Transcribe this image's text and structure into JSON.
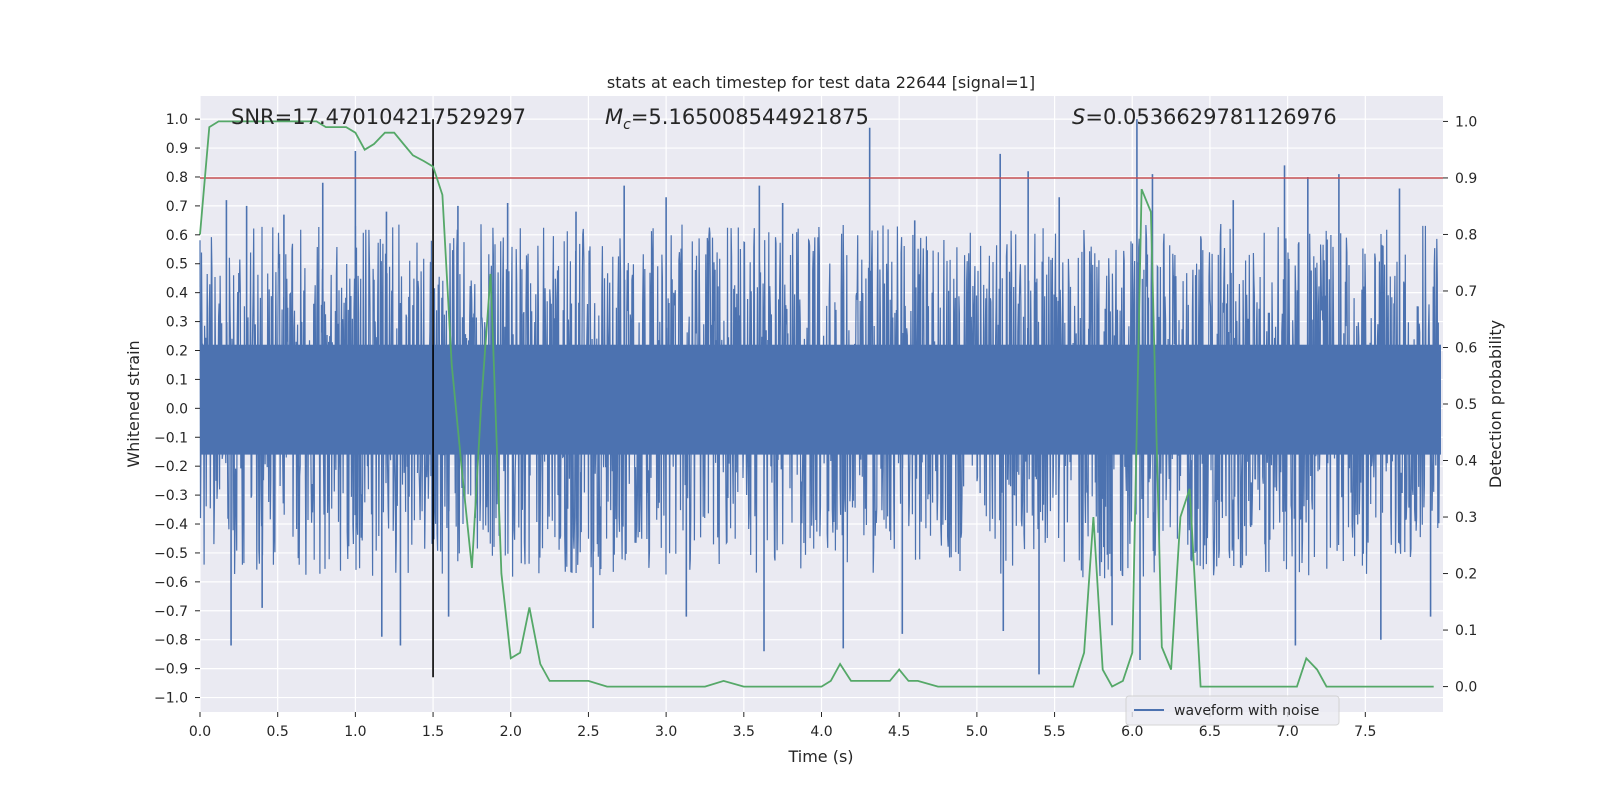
{
  "chart_data": {
    "type": "line",
    "title": "stats at each timestep for test data 22644 [signal=1]",
    "xlabel": "Time (s)",
    "ylabel": "Whitened strain",
    "y2label": "Detection probability",
    "xlim": [
      0,
      8
    ],
    "ylim": [
      -1.05,
      1.08
    ],
    "y2lim": [
      -0.045,
      1.045
    ],
    "xticks": [
      0.0,
      0.5,
      1.0,
      1.5,
      2.0,
      2.5,
      3.0,
      3.5,
      4.0,
      4.5,
      5.0,
      5.5,
      6.0,
      6.5,
      7.0,
      7.5
    ],
    "xtick_labels": [
      "0.0",
      "0.5",
      "1.0",
      "1.5",
      "2.0",
      "2.5",
      "3.0",
      "3.5",
      "4.0",
      "4.5",
      "5.0",
      "5.5",
      "6.0",
      "6.5",
      "7.0",
      "7.5"
    ],
    "yticks": [
      -1.0,
      -0.9,
      -0.8,
      -0.7,
      -0.6,
      -0.5,
      -0.4,
      -0.3,
      -0.2,
      -0.1,
      0.0,
      0.1,
      0.2,
      0.3,
      0.4,
      0.5,
      0.6,
      0.7,
      0.8,
      0.9,
      1.0
    ],
    "ytick_labels": [
      "−1.0",
      "−0.9",
      "−0.8",
      "−0.7",
      "−0.6",
      "−0.5",
      "−0.4",
      "−0.3",
      "−0.2",
      "−0.1",
      "0.0",
      "0.1",
      "0.2",
      "0.3",
      "0.4",
      "0.5",
      "0.6",
      "0.7",
      "0.8",
      "0.9",
      "1.0"
    ],
    "y2ticks": [
      0.0,
      0.1,
      0.2,
      0.3,
      0.4,
      0.5,
      0.6,
      0.7,
      0.8,
      0.9,
      1.0
    ],
    "y2tick_labels": [
      "0.0",
      "0.1",
      "0.2",
      "0.3",
      "0.4",
      "0.5",
      "0.6",
      "0.7",
      "0.8",
      "0.9",
      "1.0"
    ],
    "grid": true,
    "annotations": {
      "snr": "SNR=17.470104217529297",
      "mc_symbol": "M",
      "mc_sub": "c",
      "mc_value": "=5.165008544921875",
      "s_symbol": "S",
      "s_value": "=0.0536629781126976"
    },
    "threshold": {
      "y2": 0.9,
      "color": "#c44e52"
    },
    "marker_time": 1.5,
    "legend": {
      "position": "lower-right",
      "entries": [
        "waveform with noise"
      ]
    },
    "series": [
      {
        "name": "waveform with noise",
        "color": "#4c72b0",
        "axis": "left",
        "envelope": {
          "t": [
            0.0,
            0.5,
            1.0,
            1.5,
            2.0,
            2.5,
            3.0,
            3.5,
            4.0,
            4.5,
            5.0,
            5.5,
            6.0,
            6.5,
            7.0,
            7.5,
            8.0
          ],
          "upper": [
            0.57,
            0.57,
            0.58,
            0.58,
            0.58,
            0.57,
            0.58,
            0.57,
            0.58,
            0.58,
            0.57,
            0.57,
            0.58,
            0.58,
            0.57,
            0.58,
            0.58
          ],
          "lower": [
            -0.52,
            -0.52,
            -0.53,
            -0.52,
            -0.53,
            -0.52,
            -0.52,
            -0.53,
            -0.52,
            -0.52,
            -0.52,
            -0.53,
            -0.53,
            -0.52,
            -0.52,
            -0.52,
            -0.52
          ]
        },
        "spikes": [
          [
            0.17,
            0.72
          ],
          [
            0.3,
            0.7
          ],
          [
            0.54,
            0.67
          ],
          [
            0.79,
            0.78
          ],
          [
            1.0,
            0.89
          ],
          [
            1.2,
            0.68
          ],
          [
            1.66,
            0.7
          ],
          [
            1.98,
            0.71
          ],
          [
            2.42,
            0.68
          ],
          [
            2.73,
            0.77
          ],
          [
            3.0,
            0.73
          ],
          [
            3.6,
            0.77
          ],
          [
            3.75,
            0.71
          ],
          [
            4.31,
            0.97
          ],
          [
            4.6,
            0.65
          ],
          [
            5.15,
            0.88
          ],
          [
            5.33,
            0.82
          ],
          [
            5.53,
            0.73
          ],
          [
            6.03,
            1.0
          ],
          [
            6.13,
            0.81
          ],
          [
            6.65,
            0.72
          ],
          [
            6.98,
            0.84
          ],
          [
            7.13,
            0.8
          ],
          [
            7.33,
            0.81
          ],
          [
            7.72,
            0.76
          ],
          [
            0.2,
            -0.82
          ],
          [
            0.4,
            -0.69
          ],
          [
            1.17,
            -0.79
          ],
          [
            1.29,
            -0.82
          ],
          [
            1.6,
            -0.72
          ],
          [
            2.53,
            -0.76
          ],
          [
            3.13,
            -0.72
          ],
          [
            3.63,
            -0.84
          ],
          [
            4.14,
            -0.83
          ],
          [
            4.52,
            -0.78
          ],
          [
            5.17,
            -0.77
          ],
          [
            5.4,
            -0.92
          ],
          [
            5.87,
            -0.75
          ],
          [
            6.05,
            -0.87
          ],
          [
            7.05,
            -0.82
          ],
          [
            7.6,
            -0.8
          ],
          [
            7.92,
            -0.72
          ]
        ]
      },
      {
        "name": "",
        "color": "#55a868",
        "axis": "right",
        "x": [
          0.0,
          0.06,
          0.12,
          0.18,
          0.25,
          0.31,
          0.37,
          0.44,
          0.5,
          0.56,
          0.62,
          0.69,
          0.75,
          0.81,
          0.87,
          0.94,
          1.0,
          1.06,
          1.12,
          1.19,
          1.25,
          1.31,
          1.37,
          1.44,
          1.5,
          1.56,
          1.62,
          1.69,
          1.75,
          1.81,
          1.87,
          1.94,
          2.0,
          2.06,
          2.12,
          2.19,
          2.25,
          2.31,
          2.37,
          2.44,
          2.5,
          2.62,
          2.75,
          3.0,
          3.25,
          3.37,
          3.5,
          3.62,
          3.75,
          3.87,
          4.0,
          4.06,
          4.12,
          4.19,
          4.25,
          4.31,
          4.37,
          4.44,
          4.5,
          4.56,
          4.62,
          4.75,
          4.87,
          5.0,
          5.12,
          5.25,
          5.37,
          5.5,
          5.62,
          5.69,
          5.75,
          5.81,
          5.87,
          5.94,
          6.0,
          6.06,
          6.12,
          6.19,
          6.25,
          6.31,
          6.37,
          6.44,
          6.5,
          6.62,
          6.75,
          7.0,
          7.06,
          7.12,
          7.19,
          7.25,
          7.37,
          7.5,
          7.62,
          7.75,
          7.87,
          7.94
        ],
        "y": [
          0.8,
          0.99,
          1.0,
          1.0,
          1.0,
          1.0,
          1.0,
          1.0,
          1.0,
          1.0,
          1.0,
          1.0,
          1.0,
          0.99,
          0.99,
          0.99,
          0.98,
          0.95,
          0.96,
          0.98,
          0.98,
          0.96,
          0.94,
          0.93,
          0.92,
          0.87,
          0.57,
          0.37,
          0.21,
          0.5,
          0.73,
          0.2,
          0.05,
          0.06,
          0.14,
          0.04,
          0.01,
          0.01,
          0.01,
          0.01,
          0.01,
          0.0,
          0.0,
          0.0,
          0.0,
          0.01,
          0.0,
          0.0,
          0.0,
          0.0,
          0.0,
          0.01,
          0.04,
          0.01,
          0.01,
          0.01,
          0.01,
          0.01,
          0.03,
          0.01,
          0.01,
          0.0,
          0.0,
          0.0,
          0.0,
          0.0,
          0.0,
          0.0,
          0.0,
          0.06,
          0.3,
          0.03,
          0.0,
          0.01,
          0.06,
          0.88,
          0.84,
          0.07,
          0.03,
          0.3,
          0.35,
          0.0,
          0.0,
          0.0,
          0.0,
          0.0,
          0.0,
          0.05,
          0.03,
          0.0,
          0.0,
          0.0,
          0.0,
          0.0,
          0.0,
          0.0
        ]
      }
    ]
  }
}
